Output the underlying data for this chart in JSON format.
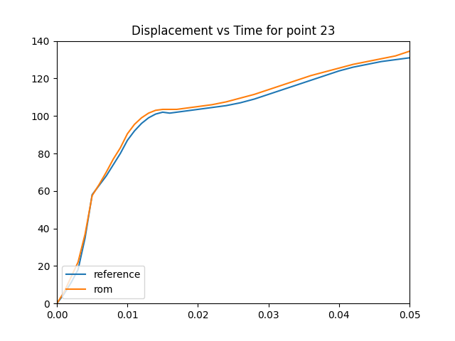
{
  "title": "Displacement vs Time for point 23",
  "reference_x": [
    0.0,
    0.001,
    0.002,
    0.003,
    0.004,
    0.005,
    0.006,
    0.007,
    0.008,
    0.009,
    0.01,
    0.011,
    0.012,
    0.013,
    0.014,
    0.015,
    0.016,
    0.017,
    0.018,
    0.019,
    0.02,
    0.022,
    0.024,
    0.026,
    0.028,
    0.03,
    0.032,
    0.034,
    0.036,
    0.038,
    0.04,
    0.042,
    0.044,
    0.046,
    0.048,
    0.05
  ],
  "reference_y": [
    0.0,
    5.0,
    11.0,
    18.0,
    35.0,
    58.0,
    63.0,
    68.0,
    74.0,
    80.0,
    87.0,
    92.0,
    96.0,
    99.0,
    101.0,
    102.0,
    101.5,
    102.0,
    102.5,
    103.0,
    103.5,
    104.5,
    105.5,
    107.0,
    109.0,
    111.5,
    114.0,
    116.5,
    119.0,
    121.5,
    124.0,
    126.0,
    127.5,
    129.0,
    130.0,
    131.0
  ],
  "rom_x": [
    0.0,
    0.001,
    0.002,
    0.003,
    0.004,
    0.005,
    0.006,
    0.007,
    0.008,
    0.009,
    0.01,
    0.011,
    0.012,
    0.013,
    0.014,
    0.015,
    0.016,
    0.017,
    0.018,
    0.019,
    0.02,
    0.022,
    0.024,
    0.026,
    0.028,
    0.03,
    0.032,
    0.034,
    0.036,
    0.038,
    0.04,
    0.042,
    0.044,
    0.046,
    0.048,
    0.05
  ],
  "rom_y": [
    0.0,
    6.0,
    14.0,
    22.0,
    37.0,
    57.5,
    63.5,
    70.0,
    77.0,
    83.0,
    90.5,
    95.5,
    99.0,
    101.5,
    103.0,
    103.5,
    103.5,
    103.5,
    104.0,
    104.5,
    105.0,
    106.0,
    107.5,
    109.5,
    111.5,
    114.0,
    116.5,
    119.0,
    121.5,
    123.5,
    125.5,
    127.5,
    129.0,
    130.5,
    132.0,
    134.5
  ],
  "reference_color": "#1f77b4",
  "rom_color": "#ff7f0e",
  "xlim": [
    0.0,
    0.05
  ],
  "ylim": [
    0,
    140
  ],
  "legend_labels": [
    "reference",
    "rom"
  ],
  "legend_loc": "lower left",
  "figsize": [
    6.4,
    4.8
  ],
  "dpi": 100
}
